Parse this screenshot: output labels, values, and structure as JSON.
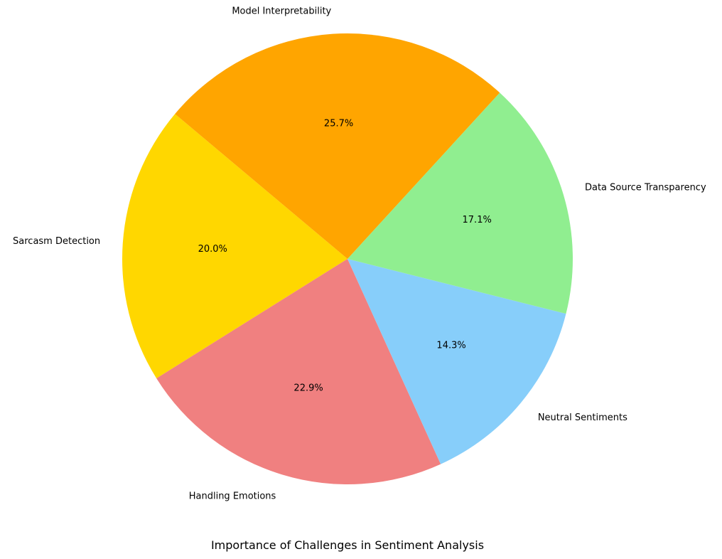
{
  "chart_data": {
    "type": "pie",
    "title": "Importance of Challenges in Sentiment Analysis",
    "start_angle_deg": 140,
    "direction": "counterclockwise",
    "slices": [
      {
        "label": "Sarcasm Detection",
        "value": 20.0,
        "pct_label": "20.0%",
        "color": "#FFD700"
      },
      {
        "label": "Handling Emotions",
        "value": 22.9,
        "pct_label": "22.9%",
        "color": "#F08080"
      },
      {
        "label": "Neutral Sentiments",
        "value": 14.3,
        "pct_label": "14.3%",
        "color": "#87CEFA"
      },
      {
        "label": "Data Source Transparency",
        "value": 17.1,
        "pct_label": "17.1%",
        "color": "#90EE90"
      },
      {
        "label": "Model Interpretability",
        "value": 25.7,
        "pct_label": "25.7%",
        "color": "#FFA500"
      }
    ]
  }
}
